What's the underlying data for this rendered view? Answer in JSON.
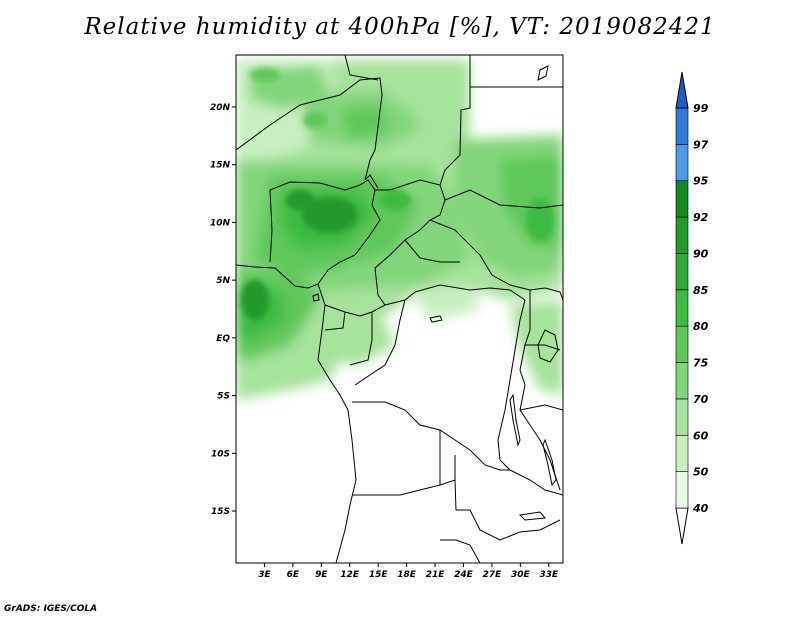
{
  "title": "Relative humidity at 400hPa [%], VT: 2019082421",
  "credit": "GrADS: IGES/COLA",
  "map": {
    "lon_range": [
      0,
      34.5
    ],
    "lat_range": [
      -19.5,
      24.5
    ],
    "lat_ticks": [
      {
        "value": 20,
        "label": "20N"
      },
      {
        "value": 15,
        "label": "15N"
      },
      {
        "value": 10,
        "label": "10N"
      },
      {
        "value": 5,
        "label": "5N"
      },
      {
        "value": 0,
        "label": "EQ"
      },
      {
        "value": -5,
        "label": "5S"
      },
      {
        "value": -10,
        "label": "10S"
      },
      {
        "value": -15,
        "label": "15S"
      }
    ],
    "lon_ticks": [
      {
        "value": 3,
        "label": "3E"
      },
      {
        "value": 6,
        "label": "6E"
      },
      {
        "value": 9,
        "label": "9E"
      },
      {
        "value": 12,
        "label": "12E"
      },
      {
        "value": 15,
        "label": "15E"
      },
      {
        "value": 18,
        "label": "18E"
      },
      {
        "value": 21,
        "label": "21E"
      },
      {
        "value": 24,
        "label": "24E"
      },
      {
        "value": 27,
        "label": "27E"
      },
      {
        "value": 30,
        "label": "30E"
      },
      {
        "value": 33,
        "label": "33E"
      }
    ]
  },
  "colorbar": {
    "levels": [
      "40",
      "50",
      "60",
      "70",
      "75",
      "80",
      "85",
      "90",
      "92",
      "95",
      "97",
      "99"
    ],
    "colors": [
      "#e8f8e3",
      "#c8efc0",
      "#a6e39b",
      "#82d67a",
      "#5ec85a",
      "#3dbb42",
      "#2faa37",
      "#209a2a",
      "#138a1f",
      "#4d9ae6",
      "#2f7ad8",
      "#1f5cc4"
    ],
    "under_color": "#ffffff"
  }
}
